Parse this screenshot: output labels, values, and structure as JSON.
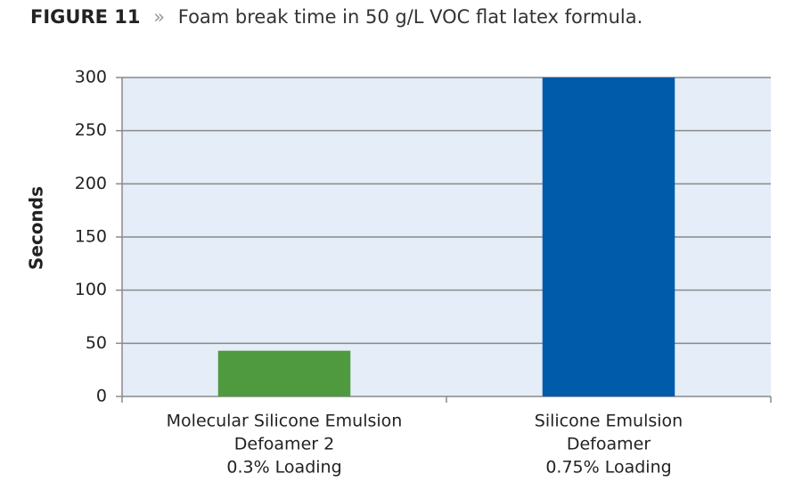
{
  "chart_data": {
    "type": "bar",
    "figure_label": "FIGURE 11",
    "separator": "»",
    "title": "Foam break time in 50 g/L VOC flat latex formula.",
    "y_label": "Seconds",
    "categories": [
      [
        "Molecular Silicone Emulsion",
        "Defoamer 2",
        "0.3% Loading"
      ],
      [
        "Silicone Emulsion",
        "Defoamer",
        "0.75% Loading"
      ]
    ],
    "values": [
      43,
      300
    ],
    "colors": [
      "#4f9a3f",
      "#005bab"
    ],
    "ylim": [
      0,
      300
    ],
    "yticks": [
      0,
      50,
      100,
      150,
      200,
      250,
      300
    ],
    "grid": true
  }
}
